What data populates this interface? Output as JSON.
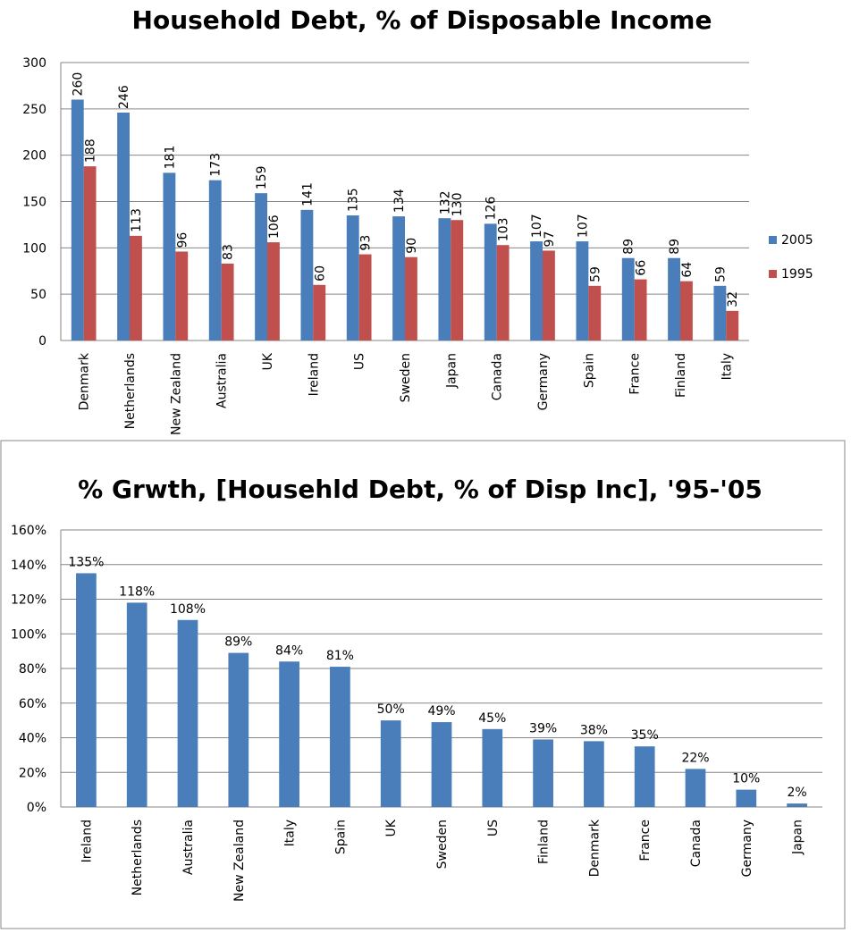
{
  "chart_data": [
    {
      "type": "grouped_bar",
      "title": "Household Debt, % of Disposable Income",
      "categories": [
        "Denmark",
        "Netherlands",
        "New Zealand",
        "Australia",
        "UK",
        "Ireland",
        "US",
        "Sweden",
        "Japan",
        "Canada",
        "Germany",
        "Spain",
        "France",
        "Finland",
        "Italy"
      ],
      "series": [
        {
          "name": "2005",
          "color": "#4a7ebb",
          "values": [
            260,
            246,
            181,
            173,
            159,
            141,
            135,
            134,
            132,
            126,
            107,
            107,
            89,
            89,
            59
          ]
        },
        {
          "name": "1995",
          "color": "#c0504d",
          "values": [
            188,
            113,
            96,
            83,
            106,
            60,
            93,
            90,
            130,
            103,
            97,
            59,
            66,
            64,
            32
          ]
        }
      ],
      "ylim": [
        0,
        300
      ],
      "yticks": [
        0,
        50,
        100,
        150,
        200,
        250,
        300
      ],
      "grid": true,
      "legend": "right"
    },
    {
      "type": "bar",
      "title": "% Grwth, [Househld Debt, % of Disp Inc], '95-'05",
      "categories": [
        "Ireland",
        "Netherlands",
        "Australia",
        "New Zealand",
        "Italy",
        "Spain",
        "UK",
        "Sweden",
        "US",
        "Finland",
        "Denmark",
        "France",
        "Canada",
        "Germany",
        "Japan"
      ],
      "values": [
        135,
        118,
        108,
        89,
        84,
        81,
        50,
        49,
        45,
        39,
        38,
        35,
        22,
        10,
        2
      ],
      "value_labels": [
        "135%",
        "118%",
        "108%",
        "89%",
        "84%",
        "81%",
        "50%",
        "49%",
        "45%",
        "39%",
        "38%",
        "35%",
        "22%",
        "10%",
        "2%"
      ],
      "color": "#4a7ebb",
      "ylim": [
        0,
        160
      ],
      "yticks": [
        {
          "value": 0,
          "label": "0%"
        },
        {
          "value": 20,
          "label": "20%"
        },
        {
          "value": 40,
          "label": "40%"
        },
        {
          "value": 60,
          "label": "60%"
        },
        {
          "value": 80,
          "label": "80%"
        },
        {
          "value": 100,
          "label": "100%"
        },
        {
          "value": 120,
          "label": "120%"
        },
        {
          "value": 140,
          "label": "140%"
        },
        {
          "value": 160,
          "label": "160%"
        }
      ],
      "grid": true
    }
  ]
}
